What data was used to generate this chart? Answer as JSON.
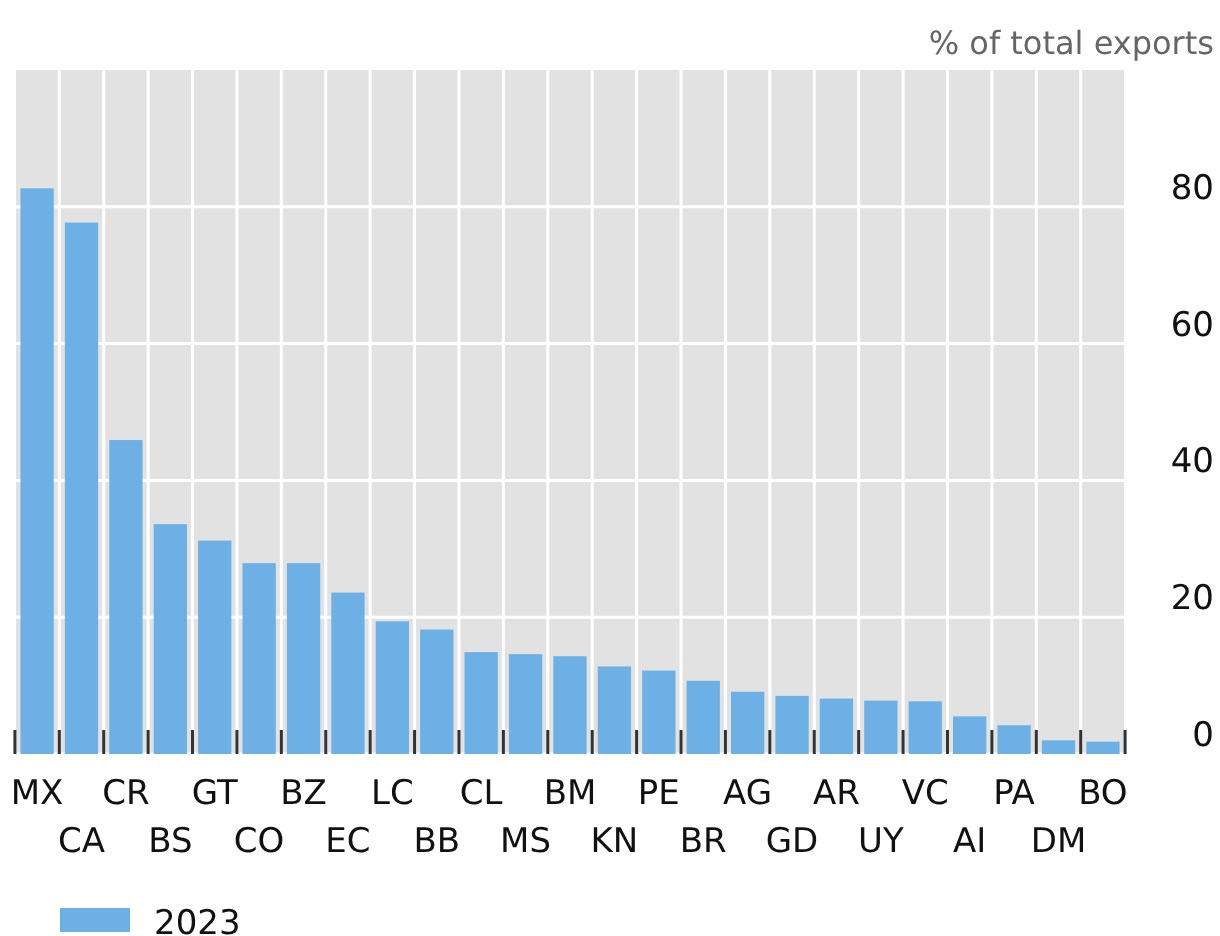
{
  "chart_data": {
    "type": "bar",
    "ylabel": "% of total exports",
    "categories": [
      "MX",
      "CA",
      "CR",
      "BS",
      "GT",
      "CO",
      "BZ",
      "EC",
      "LC",
      "BB",
      "CL",
      "MS",
      "BM",
      "KN",
      "PE",
      "BR",
      "AG",
      "GD",
      "AR",
      "UY",
      "VC",
      "AI",
      "PA",
      "DM",
      "BO"
    ],
    "series": [
      {
        "name": "2023",
        "color": "#6cb0e6",
        "values": [
          82.7,
          77.7,
          45.9,
          33.6,
          31.2,
          27.9,
          27.9,
          23.6,
          19.4,
          18.2,
          14.9,
          14.6,
          14.3,
          12.8,
          12.2,
          10.7,
          9.1,
          8.5,
          8.1,
          7.8,
          7.7,
          5.5,
          4.2,
          2.0,
          1.8
        ]
      }
    ],
    "ylim": [
      0,
      100
    ],
    "yticks": [
      0,
      20,
      40,
      60,
      80
    ],
    "grid": true,
    "legend": "bottom"
  }
}
